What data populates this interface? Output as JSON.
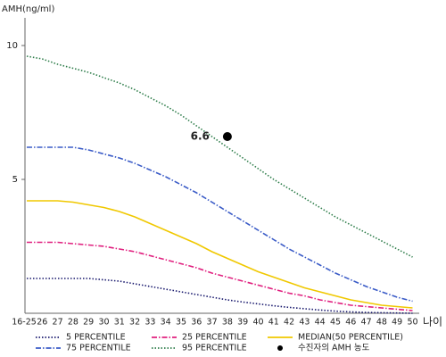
{
  "chart_data": {
    "type": "line",
    "y_label": "AMH(ng/ml)",
    "x_label": "나이",
    "categories": [
      "16-25",
      "26",
      "27",
      "28",
      "29",
      "30",
      "31",
      "32",
      "33",
      "34",
      "35",
      "36",
      "37",
      "38",
      "39",
      "40",
      "41",
      "42",
      "43",
      "44",
      "45",
      "46",
      "47",
      "48",
      "49",
      "50"
    ],
    "ylim": [
      0,
      11
    ],
    "yticks": [
      5,
      10
    ],
    "series": [
      {
        "name": "5 PERCENTILE",
        "color": "#1a1a6e",
        "dash": "1.5,2",
        "values": [
          1.3,
          1.3,
          1.3,
          1.3,
          1.3,
          1.25,
          1.2,
          1.1,
          1.0,
          0.9,
          0.8,
          0.7,
          0.6,
          0.5,
          0.42,
          0.35,
          0.28,
          0.22,
          0.17,
          0.12,
          0.08,
          0.05,
          0.03,
          0.02,
          0.01,
          0.0
        ]
      },
      {
        "name": "25 PERCENTILE",
        "color": "#e0207f",
        "dash": "6,2,1.5,2",
        "values": [
          2.65,
          2.65,
          2.65,
          2.6,
          2.55,
          2.5,
          2.4,
          2.3,
          2.15,
          2.0,
          1.85,
          1.7,
          1.5,
          1.35,
          1.2,
          1.05,
          0.9,
          0.75,
          0.65,
          0.5,
          0.4,
          0.3,
          0.25,
          0.2,
          0.15,
          0.1
        ]
      },
      {
        "name": "MEDIAN(50 PERCENTILE)",
        "color": "#f0c800",
        "dash": "none",
        "values": [
          4.2,
          4.2,
          4.2,
          4.15,
          4.05,
          3.95,
          3.8,
          3.6,
          3.35,
          3.1,
          2.85,
          2.6,
          2.3,
          2.05,
          1.8,
          1.55,
          1.35,
          1.15,
          0.95,
          0.8,
          0.65,
          0.5,
          0.4,
          0.3,
          0.25,
          0.2
        ]
      },
      {
        "name": "75 PERCENTILE",
        "color": "#3a5bc7",
        "dash": "6,2,1.5,2",
        "values": [
          6.2,
          6.2,
          6.2,
          6.2,
          6.1,
          5.95,
          5.8,
          5.6,
          5.35,
          5.1,
          4.8,
          4.5,
          4.15,
          3.8,
          3.45,
          3.1,
          2.75,
          2.4,
          2.1,
          1.8,
          1.5,
          1.25,
          1.0,
          0.8,
          0.6,
          0.45
        ]
      },
      {
        "name": "95 PERCENTILE",
        "color": "#2e7d4a",
        "dash": "1.5,2",
        "values": [
          9.6,
          9.5,
          9.3,
          9.15,
          9.0,
          8.8,
          8.6,
          8.35,
          8.05,
          7.75,
          7.4,
          7.0,
          6.6,
          6.2,
          5.8,
          5.4,
          5.0,
          4.65,
          4.3,
          3.95,
          3.6,
          3.3,
          3.0,
          2.7,
          2.4,
          2.1
        ]
      }
    ],
    "marker": {
      "name": "수진자의 AMH 농도",
      "category": "38",
      "value": 6.6,
      "color": "#000000"
    }
  }
}
